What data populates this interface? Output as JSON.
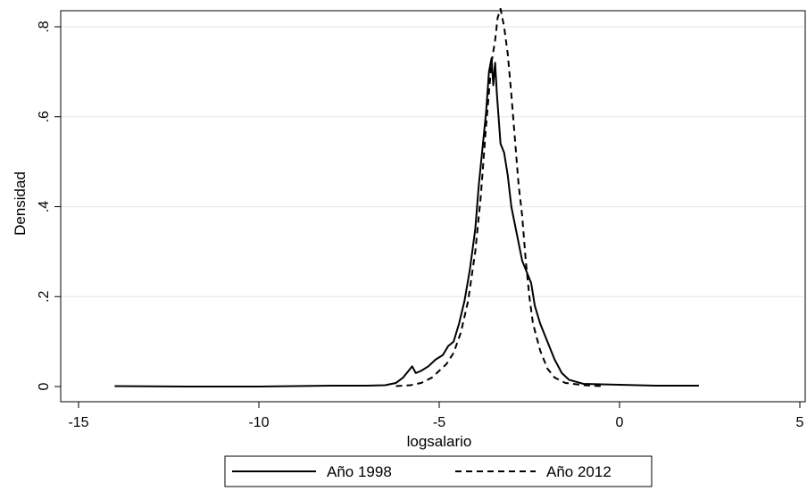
{
  "chart_data": {
    "type": "line",
    "title": "",
    "xlabel": "logsalario",
    "ylabel": "Densidad",
    "xlim": [
      -15,
      5
    ],
    "ylim": [
      0,
      0.8
    ],
    "x_ticks": [
      -15,
      -10,
      -5,
      0,
      5
    ],
    "x_tick_labels": [
      "-15",
      "-10",
      "-5",
      "0",
      "5"
    ],
    "y_ticks": [
      0,
      0.2,
      0.4,
      0.6,
      0.8
    ],
    "y_tick_labels": [
      "0",
      ".2",
      ".4",
      ".6",
      ".8"
    ],
    "grid": "horizontal",
    "legend": {
      "position": "bottom",
      "entries": [
        "Año 1998",
        "Año 2012"
      ]
    },
    "series": [
      {
        "name": "Año 1998",
        "style": "solid",
        "color": "#000000",
        "points": [
          [
            -14.0,
            0.001
          ],
          [
            -12.0,
            0.0
          ],
          [
            -10.0,
            0.0
          ],
          [
            -8.0,
            0.002
          ],
          [
            -7.0,
            0.002
          ],
          [
            -6.5,
            0.003
          ],
          [
            -6.2,
            0.008
          ],
          [
            -6.0,
            0.02
          ],
          [
            -5.85,
            0.035
          ],
          [
            -5.75,
            0.045
          ],
          [
            -5.65,
            0.03
          ],
          [
            -5.5,
            0.035
          ],
          [
            -5.3,
            0.045
          ],
          [
            -5.1,
            0.06
          ],
          [
            -4.9,
            0.07
          ],
          [
            -4.75,
            0.09
          ],
          [
            -4.6,
            0.1
          ],
          [
            -4.45,
            0.14
          ],
          [
            -4.3,
            0.19
          ],
          [
            -4.15,
            0.26
          ],
          [
            -4.0,
            0.35
          ],
          [
            -3.9,
            0.45
          ],
          [
            -3.8,
            0.53
          ],
          [
            -3.7,
            0.61
          ],
          [
            -3.62,
            0.7
          ],
          [
            -3.55,
            0.73
          ],
          [
            -3.5,
            0.67
          ],
          [
            -3.45,
            0.72
          ],
          [
            -3.4,
            0.65
          ],
          [
            -3.3,
            0.54
          ],
          [
            -3.2,
            0.52
          ],
          [
            -3.1,
            0.47
          ],
          [
            -3.0,
            0.4
          ],
          [
            -2.85,
            0.34
          ],
          [
            -2.7,
            0.28
          ],
          [
            -2.55,
            0.25
          ],
          [
            -2.45,
            0.23
          ],
          [
            -2.35,
            0.18
          ],
          [
            -2.2,
            0.14
          ],
          [
            -2.0,
            0.1
          ],
          [
            -1.8,
            0.06
          ],
          [
            -1.6,
            0.03
          ],
          [
            -1.4,
            0.015
          ],
          [
            -1.0,
            0.006
          ],
          [
            0.0,
            0.004
          ],
          [
            1.0,
            0.002
          ],
          [
            2.2,
            0.002
          ]
        ]
      },
      {
        "name": "Año 2012",
        "style": "dashed",
        "color": "#000000",
        "points": [
          [
            -6.2,
            0.001
          ],
          [
            -5.8,
            0.003
          ],
          [
            -5.5,
            0.008
          ],
          [
            -5.2,
            0.02
          ],
          [
            -5.0,
            0.035
          ],
          [
            -4.8,
            0.05
          ],
          [
            -4.6,
            0.075
          ],
          [
            -4.4,
            0.12
          ],
          [
            -4.2,
            0.19
          ],
          [
            -4.0,
            0.3
          ],
          [
            -3.85,
            0.42
          ],
          [
            -3.7,
            0.58
          ],
          [
            -3.55,
            0.72
          ],
          [
            -3.45,
            0.77
          ],
          [
            -3.38,
            0.82
          ],
          [
            -3.3,
            0.84
          ],
          [
            -3.2,
            0.8
          ],
          [
            -3.1,
            0.74
          ],
          [
            -3.0,
            0.65
          ],
          [
            -2.9,
            0.55
          ],
          [
            -2.8,
            0.45
          ],
          [
            -2.7,
            0.38
          ],
          [
            -2.6,
            0.28
          ],
          [
            -2.5,
            0.2
          ],
          [
            -2.4,
            0.14
          ],
          [
            -2.2,
            0.08
          ],
          [
            -2.0,
            0.04
          ],
          [
            -1.8,
            0.02
          ],
          [
            -1.5,
            0.008
          ],
          [
            -1.0,
            0.003
          ],
          [
            -0.5,
            0.001
          ]
        ]
      }
    ]
  }
}
